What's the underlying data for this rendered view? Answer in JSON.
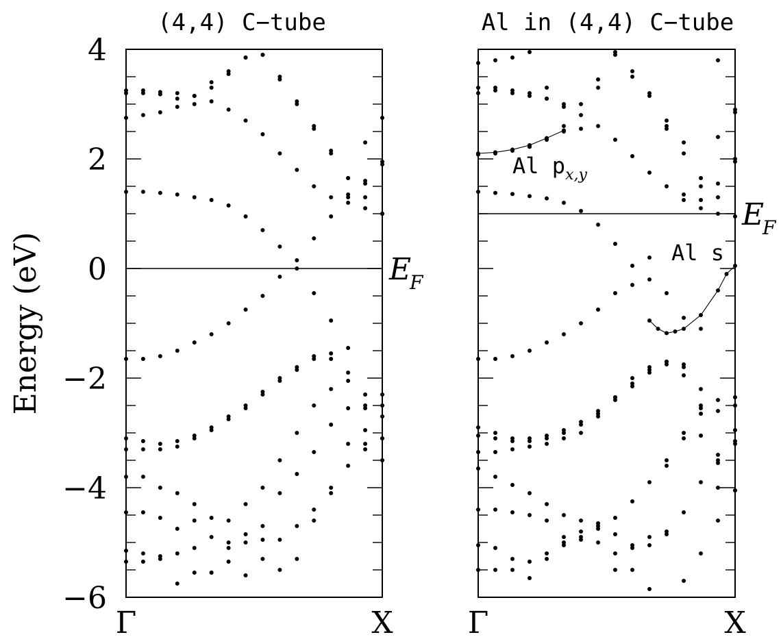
{
  "figure": {
    "ylabel": "Energy (eV)",
    "ytick_labels": [
      "4",
      "2",
      "0",
      "−2",
      "−4",
      "−6"
    ]
  },
  "chart_data": [
    {
      "type": "scatter",
      "title": "(4,4) C−tube",
      "xlabel": "",
      "ylabel": "Energy (eV)",
      "x_ticks": [
        "Γ",
        "X"
      ],
      "xlim": [
        0,
        1
      ],
      "ylim": [
        -6,
        4
      ],
      "fermi_level": {
        "energy": 0.0,
        "label_main": "E",
        "label_sub": "F"
      },
      "series": [
        {
          "k": [
            0,
            0.0667,
            0.1333,
            0.2,
            0.2667,
            0.3333,
            0.4,
            0.4667,
            0.5333,
            0.6,
            0.6667,
            0.7333,
            0.8,
            0.8667,
            0.9333,
            1.0
          ],
          "energy": [
            3.25,
            3.25,
            3.22,
            3.2,
            3.15,
            3.05,
            2.9,
            2.7,
            2.45,
            2.1,
            1.8,
            1.5,
            1.3,
            1.2,
            1.1,
            1.0
          ]
        },
        {
          "k": [
            0,
            0.0667,
            0.1333,
            0.2,
            0.2667,
            0.3333,
            0.4,
            0.4667,
            0.5333,
            0.6,
            0.6667,
            0.7333,
            0.8,
            0.8667,
            0.9333,
            1.0
          ],
          "energy": [
            3.2,
            3.2,
            3.18,
            3.1,
            3.15,
            3.4,
            3.6,
            3.85,
            3.9,
            3.5,
            3.05,
            2.6,
            2.15,
            1.65,
            1.55,
            1.95
          ]
        },
        {
          "k": [
            0,
            0.0667,
            0.1333,
            0.2,
            0.2667,
            0.3333,
            0.4,
            0.4667,
            0.5333,
            0.6,
            0.6667,
            0.7333,
            0.8,
            0.8667,
            0.9333,
            1.0
          ],
          "energy": [
            2.75,
            2.8,
            2.85,
            2.95,
            3.0,
            3.3,
            3.55,
            3.85,
            3.9,
            3.45,
            3.0,
            2.55,
            2.1,
            1.65,
            1.3,
            1.9
          ]
        },
        {
          "k": [
            0,
            0.0667,
            0.1333,
            0.2,
            0.2667,
            0.3333,
            0.4,
            0.4667,
            0.5333,
            0.6,
            0.6667,
            0.7333,
            0.8,
            0.8667,
            0.9333,
            1.0
          ],
          "energy": [
            1.4,
            1.4,
            1.38,
            1.35,
            1.3,
            1.25,
            1.15,
            0.95,
            0.7,
            0.4,
            0.15,
            -0.45,
            -0.95,
            1.3,
            2.3,
            2.75
          ]
        },
        {
          "k": [
            0,
            0.0667,
            0.1333,
            0.2,
            0.2667,
            0.3333,
            0.4,
            0.4667,
            0.5333,
            0.6,
            0.6667,
            0.7333,
            0.8,
            0.8667,
            0.9333,
            1.0
          ],
          "energy": [
            -1.65,
            -1.65,
            -1.6,
            -1.5,
            -1.35,
            -1.2,
            -1.0,
            -0.75,
            -0.5,
            -0.15,
            0.0,
            0.55,
            0.95,
            1.35,
            1.6,
            1.0
          ]
        },
        {
          "k": [
            0,
            0.0667,
            0.1333,
            0.2,
            0.2667,
            0.3333,
            0.4,
            0.4667,
            0.5333,
            0.6,
            0.6667,
            0.7333,
            0.8,
            0.8667,
            0.9333,
            1.0
          ],
          "energy": [
            -3.1,
            -3.15,
            -3.2,
            -3.15,
            -3.05,
            -2.9,
            -2.7,
            -2.5,
            -2.25,
            -2.0,
            -1.8,
            -1.6,
            -1.55,
            -1.9,
            -2.3,
            -2.3
          ]
        },
        {
          "k": [
            0,
            0.0667,
            0.1333,
            0.2,
            0.2667,
            0.3333,
            0.4,
            0.4667,
            0.5333,
            0.6,
            0.6667,
            0.7333,
            0.8,
            0.8667,
            0.9333,
            1.0
          ],
          "energy": [
            -3.3,
            -3.3,
            -3.3,
            -3.25,
            -3.1,
            -2.95,
            -2.75,
            -2.55,
            -2.3,
            -2.05,
            -1.85,
            -1.65,
            -1.65,
            -1.45,
            -2.5,
            -2.7
          ]
        },
        {
          "k": [
            0,
            0.0667,
            0.1333,
            0.2,
            0.2667,
            0.3333,
            0.4,
            0.4667,
            0.5333,
            0.6,
            0.6667,
            0.7333,
            0.8,
            0.8667,
            0.9333,
            1.0
          ],
          "energy": [
            -3.8,
            -3.8,
            -4.0,
            -4.1,
            -4.3,
            -4.55,
            -4.6,
            -4.85,
            -4.95,
            -4.95,
            -4.7,
            -4.4,
            -4.0,
            -3.6,
            -3.2,
            -3.1
          ]
        },
        {
          "k": [
            0,
            0.0667,
            0.1333,
            0.2,
            0.2667,
            0.3333,
            0.4,
            0.4667,
            0.5333,
            0.6,
            0.6667,
            0.7333,
            0.8,
            0.8667,
            0.9333,
            1.0
          ],
          "energy": [
            -4.45,
            -4.45,
            -4.55,
            -4.75,
            -4.6,
            -4.9,
            -5.0,
            -5.0,
            -5.3,
            -5.5,
            -5.3,
            -4.6,
            -4.1,
            -3.2,
            -2.55,
            -2.5
          ]
        },
        {
          "k": [
            0,
            0.0667,
            0.1333,
            0.2,
            0.2667,
            0.3333,
            0.4,
            0.4667,
            0.5333,
            0.6,
            0.6667,
            0.7333,
            0.8,
            0.8667,
            0.9333,
            1.0
          ],
          "energy": [
            -5.15,
            -5.2,
            -5.25,
            -5.2,
            -5.1,
            -5.55,
            -5.1,
            -4.3,
            -4.0,
            -3.5,
            -3.0,
            -2.5,
            -2.2,
            -2.05,
            -3.3,
            -3.5
          ]
        },
        {
          "k": [
            0,
            0.0667,
            0.1333,
            0.2,
            0.2667,
            0.3333,
            0.4,
            0.4667,
            0.5333,
            0.6,
            0.6667,
            0.7333,
            0.8,
            0.8667,
            0.9333,
            1.0
          ],
          "energy": [
            -5.35,
            -5.35,
            -5.3,
            -5.75,
            -5.55,
            -5.55,
            -5.35,
            -5.6,
            -4.7,
            -4.1,
            -3.75,
            -3.35,
            -2.85,
            -2.55,
            -2.95,
            -3.1
          ]
        }
      ]
    },
    {
      "type": "scatter",
      "title": "Al in (4,4) C−tube",
      "xlabel": "",
      "ylabel": "",
      "x_ticks": [
        "Γ",
        "X"
      ],
      "xlim": [
        0,
        1
      ],
      "ylim": [
        -6,
        4
      ],
      "fermi_level": {
        "energy": 1.0,
        "label_main": "E",
        "label_sub": "F"
      },
      "series": [
        {
          "name": "Al p",
          "label_main": "Al p",
          "label_sub": "x,y",
          "connected": true,
          "k": [
            0,
            0.0667,
            0.1333,
            0.2,
            0.2667,
            0.3333
          ],
          "energy": [
            2.1,
            2.12,
            2.17,
            2.25,
            2.38,
            2.52
          ]
        },
        {
          "k": [
            0,
            0.0667,
            0.1333,
            0.2,
            0.2667,
            0.3333
          ],
          "energy": [
            2.08,
            2.1,
            2.15,
            2.22,
            2.35,
            2.5
          ]
        },
        {
          "name": "Al s",
          "label_main": "Al s",
          "label_sub": "",
          "connected": true,
          "k": [
            0.6667,
            0.7,
            0.7333,
            0.7667,
            0.8,
            0.8667,
            0.9333,
            0.9667,
            1.0
          ],
          "energy": [
            -0.95,
            -1.1,
            -1.18,
            -1.15,
            -1.1,
            -0.85,
            -0.4,
            -0.1,
            0.05
          ]
        },
        {
          "k": [
            0,
            0.0667,
            0.1333,
            0.2,
            0.2667,
            0.3333,
            0.4,
            0.4667,
            0.5333,
            0.6,
            0.6667,
            0.7333,
            0.8,
            0.8667,
            0.9333,
            1.0
          ],
          "energy": [
            3.3,
            3.3,
            3.25,
            3.2,
            3.1,
            2.95,
            2.8,
            2.6,
            2.35,
            2.05,
            1.75,
            1.5,
            1.25,
            1.1,
            1.0,
            0.95
          ]
        },
        {
          "k": [
            0,
            0.0667,
            0.1333,
            0.2,
            0.2667,
            0.3333,
            0.4,
            0.4667,
            0.5333,
            0.6,
            0.6667,
            0.7333,
            0.8,
            0.8667,
            0.9333,
            1.0
          ],
          "energy": [
            3.75,
            3.8,
            3.85,
            3.95,
            3.3,
            2.6,
            3.0,
            3.3,
            3.95,
            3.6,
            3.2,
            2.7,
            2.3,
            1.65,
            1.55,
            2.0
          ]
        },
        {
          "k": [
            0,
            0.0667,
            0.1333,
            0.2,
            0.2667,
            0.3333,
            0.4,
            0.4667,
            0.5333,
            0.6,
            0.6667,
            0.7333,
            0.8,
            0.8667,
            0.9333,
            1.0
          ],
          "energy": [
            3.2,
            3.25,
            3.2,
            3.15,
            3.1,
            3.0,
            2.55,
            3.45,
            3.9,
            3.5,
            3.15,
            2.55,
            2.1,
            1.5,
            1.3,
            1.95
          ]
        },
        {
          "k": [
            0,
            0.0667,
            0.1333,
            0.2,
            0.2667,
            0.3333,
            0.4,
            0.4667,
            0.5333,
            0.6,
            0.6667,
            0.7333,
            0.8,
            0.8667,
            0.9333,
            1.0
          ],
          "energy": [
            1.4,
            1.38,
            1.36,
            1.32,
            1.28,
            1.2,
            1.05,
            0.8,
            0.45,
            0.05,
            -0.2,
            -0.45,
            -0.9,
            -1.1,
            3.8,
            2.9
          ]
        },
        {
          "k": [
            0,
            0.0667,
            0.1333,
            0.2,
            0.2667,
            0.3333,
            0.4,
            0.4667,
            0.5333,
            0.6,
            0.6667,
            0.7333,
            0.8,
            0.8667,
            0.9333,
            1.0
          ],
          "energy": [
            -1.65,
            -1.65,
            -1.6,
            -1.5,
            -1.35,
            -1.2,
            -1.0,
            -0.75,
            -0.45,
            -0.3,
            0.2,
            2.6,
            1.35,
            1.25,
            2.4,
            2.85
          ]
        },
        {
          "k": [
            0,
            0.0667,
            0.1333,
            0.2,
            0.2667,
            0.3333,
            0.4,
            0.4667,
            0.5333,
            0.6,
            0.6667,
            0.7333,
            0.8,
            0.8667,
            0.9333,
            1.0
          ],
          "energy": [
            -2.9,
            -3.0,
            -3.1,
            -3.1,
            -3.05,
            -2.95,
            -2.8,
            -2.6,
            -2.35,
            -2.1,
            -1.85,
            -1.7,
            -1.75,
            -2.2,
            -2.4,
            -2.35
          ]
        },
        {
          "k": [
            0,
            0.0667,
            0.1333,
            0.2,
            0.2667,
            0.3333,
            0.4,
            0.4667,
            0.5333,
            0.6,
            0.6667,
            0.7333,
            0.8,
            0.8667,
            0.9333,
            1.0
          ],
          "energy": [
            -3.05,
            -3.1,
            -3.15,
            -3.15,
            -3.1,
            -3.0,
            -2.85,
            -2.65,
            -2.4,
            -2.15,
            -1.9,
            -1.75,
            -1.8,
            -2.55,
            -2.6,
            -2.5
          ]
        },
        {
          "k": [
            0,
            0.0667,
            0.1333,
            0.2,
            0.2667,
            0.3333,
            0.4,
            0.4667,
            0.5333,
            0.6,
            0.6667,
            0.7333,
            0.8,
            0.8667,
            0.9333,
            1.0
          ],
          "energy": [
            -3.35,
            -3.35,
            -3.3,
            -3.25,
            -3.2,
            -3.1,
            -3.0,
            -2.7,
            -2.35,
            -2.0,
            -1.8,
            -1.7,
            -1.95,
            -3.05,
            -3.5,
            -2.95
          ]
        },
        {
          "k": [
            0,
            0.0667,
            0.1333,
            0.2,
            0.2667,
            0.3333,
            0.4,
            0.4667,
            0.5333,
            0.6,
            0.6667,
            0.7333,
            0.8,
            0.8667,
            0.9333,
            1.0
          ],
          "energy": [
            -3.65,
            -3.8,
            -3.95,
            -4.1,
            -4.3,
            -4.5,
            -4.6,
            -4.75,
            -4.85,
            -5.05,
            -4.9,
            -4.8,
            -4.45,
            -3.9,
            -3.4,
            -3.2
          ]
        },
        {
          "k": [
            0,
            0.0667,
            0.1333,
            0.2,
            0.2667,
            0.3333,
            0.4,
            0.4667,
            0.5333,
            0.6,
            0.6667,
            0.7333,
            0.8,
            0.8667,
            0.9333,
            1.0
          ],
          "energy": [
            -4.4,
            -4.4,
            -4.45,
            -4.5,
            -4.6,
            -4.9,
            -4.9,
            -5.0,
            -5.5,
            -5.1,
            -5.05,
            -3.6,
            -3.0,
            -2.5,
            -3.55,
            -4.05
          ]
        },
        {
          "k": [
            0,
            0.0667,
            0.1333,
            0.2,
            0.2667,
            0.3333,
            0.4,
            0.4667,
            0.5333,
            0.6,
            0.6667,
            0.7333,
            0.8,
            0.8667,
            0.9333,
            1.0
          ],
          "energy": [
            -5.05,
            -5.1,
            -5.3,
            -5.35,
            -5.2,
            -5.0,
            -4.8,
            -4.65,
            -4.55,
            -4.25,
            -3.9,
            -3.5,
            -3.1,
            -2.65,
            -4.0,
            -4.05
          ]
        },
        {
          "k": [
            0,
            0.0667,
            0.1333,
            0.2,
            0.2667,
            0.3333,
            0.4,
            0.4667,
            0.5333,
            0.6,
            0.6667,
            0.7333,
            0.8,
            0.8667,
            0.9333,
            1.0
          ],
          "energy": [
            -5.5,
            -5.5,
            -5.5,
            -5.65,
            -5.3,
            -5.05,
            -4.95,
            -4.7,
            -5.2,
            -5.5,
            -5.85,
            -4.85,
            -5.7,
            -5.2,
            -4.6,
            -3.15
          ]
        }
      ]
    }
  ]
}
